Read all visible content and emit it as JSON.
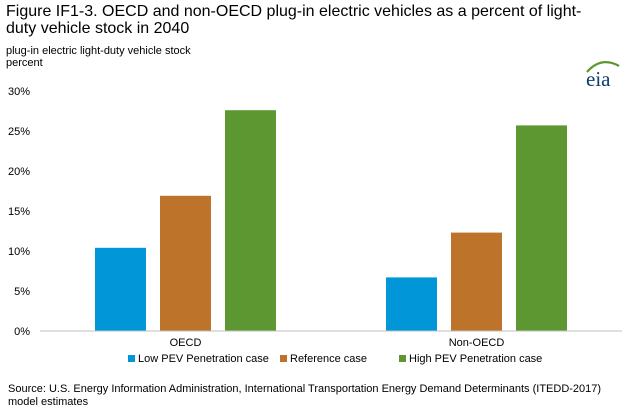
{
  "header": {
    "title": "Figure IF1-3. OECD and non-OECD plug-in electric vehicles as a percent of light-duty vehicle stock in 2040",
    "unit_line1": "plug-in  electric light-duty vehicle  stock",
    "unit_line2": "percent",
    "logo_text": "eia"
  },
  "colors": {
    "low": "#0096d7",
    "reference": "#bd732a",
    "high": "#5d9732",
    "axis": "#bfbfbf",
    "logo_arc": "#5d9732",
    "logo_text": "#0b3d6e"
  },
  "chart_data": {
    "type": "bar",
    "categories": [
      "OECD",
      "Non-OECD"
    ],
    "series": [
      {
        "name": "Low PEV Penetration case",
        "values": [
          10.4,
          6.7
        ]
      },
      {
        "name": "Reference case",
        "values": [
          16.9,
          12.3
        ]
      },
      {
        "name": "High PEV Penetration case",
        "values": [
          27.6,
          25.7
        ]
      }
    ],
    "ylim": [
      0,
      30
    ],
    "yticks": [
      0,
      5,
      10,
      15,
      20,
      25,
      30
    ],
    "ytick_labels": [
      "0%",
      "5%",
      "10%",
      "15%",
      "20%",
      "25%",
      "30%"
    ],
    "grid": false,
    "legend_position": "bottom"
  },
  "footer": {
    "source": "Source: U.S. Energy Information  Administration, International Transportation Energy Demand Determinants (ITEDD-2017) model estimates"
  }
}
